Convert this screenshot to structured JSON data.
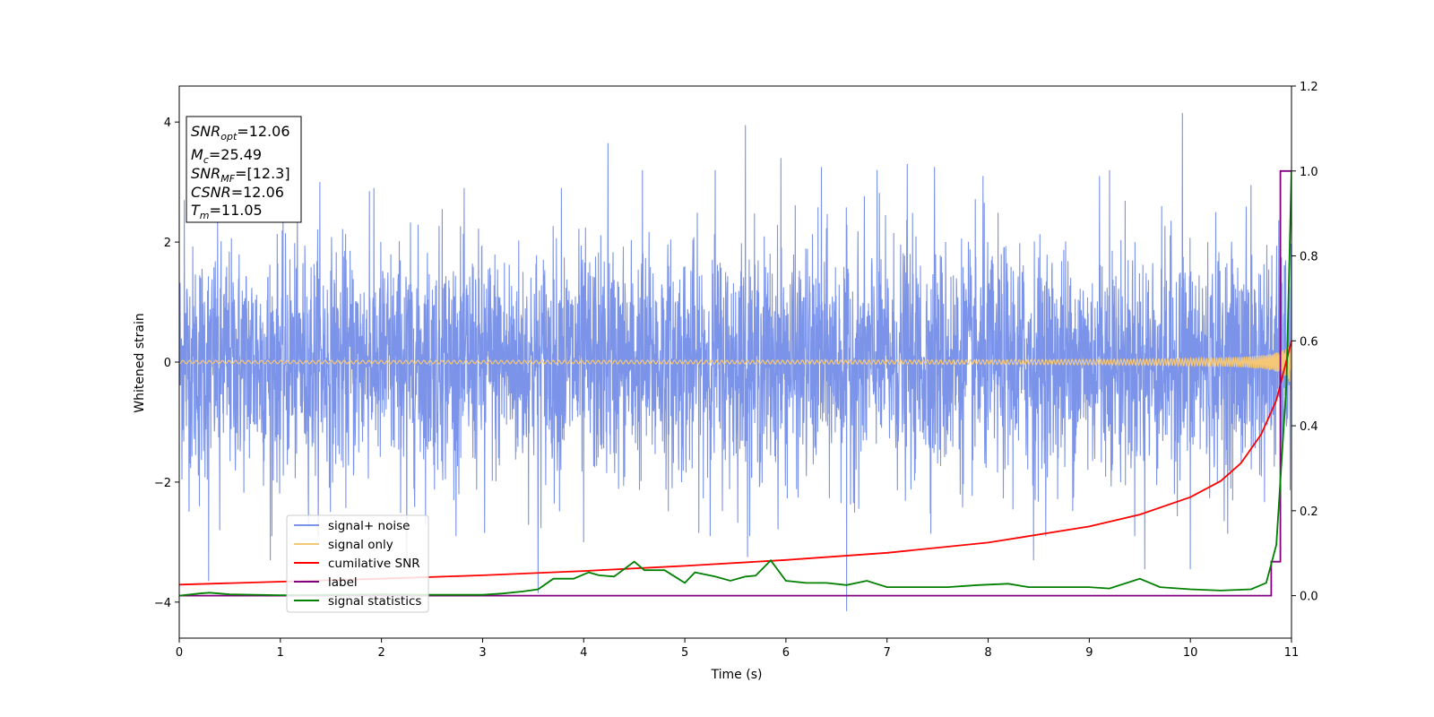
{
  "chart_data": {
    "type": "line",
    "title": "",
    "xlabel": "Time (s)",
    "ylabel": "Whitened strain",
    "xlim": [
      0,
      11
    ],
    "ylim": [
      -4.6,
      4.6
    ],
    "y2lim": [
      -0.1,
      1.2
    ],
    "xticks": [
      "0",
      "1",
      "2",
      "3",
      "4",
      "5",
      "6",
      "7",
      "8",
      "9",
      "10",
      "11"
    ],
    "yticks": [
      "−4",
      "−2",
      "0",
      "2",
      "4"
    ],
    "y2ticks": [
      "0.0",
      "0.2",
      "0.4",
      "0.6",
      "0.8",
      "1.0",
      "1.2"
    ],
    "legend_position": "lower-left",
    "annotation": {
      "snr_opt": {
        "base": "SNR",
        "sub": "opt",
        "value": "=12.06"
      },
      "mc": {
        "base": "M",
        "sub": "c",
        "value": "=25.49"
      },
      "snr_mf": {
        "base": "SNR",
        "sub": "MF",
        "value": "=[12.3]"
      },
      "csnr": {
        "base": "CSNR",
        "value": "=12.06"
      },
      "tm": {
        "base": "T",
        "sub": "m",
        "value": "=11.05"
      }
    },
    "series": [
      {
        "name": "signal+ noise",
        "color": "#7b93e8",
        "axis": "left",
        "kind": "noise",
        "std": 0.95,
        "peaks": [
          [
            0.05,
            2.7
          ],
          [
            0.2,
            -2.4
          ],
          [
            0.29,
            -3.65
          ],
          [
            0.4,
            -2.8
          ],
          [
            0.9,
            -3.3
          ],
          [
            1.39,
            3.0
          ],
          [
            1.88,
            2.85
          ],
          [
            2.25,
            -3.3
          ],
          [
            2.6,
            2.55
          ],
          [
            3.02,
            -2.85
          ],
          [
            3.55,
            -3.85
          ],
          [
            3.78,
            2.9
          ],
          [
            4.0,
            -3.0
          ],
          [
            4.24,
            3.65
          ],
          [
            4.58,
            3.2
          ],
          [
            5.3,
            3.2
          ],
          [
            5.6,
            3.95
          ],
          [
            5.62,
            -3.25
          ],
          [
            5.95,
            3.4
          ],
          [
            6.35,
            3.25
          ],
          [
            6.6,
            -4.15
          ],
          [
            6.9,
            3.2
          ],
          [
            7.2,
            3.3
          ],
          [
            7.47,
            3.25
          ],
          [
            7.95,
            3.1
          ],
          [
            8.45,
            -3.3
          ],
          [
            9.1,
            3.1
          ],
          [
            9.2,
            3.2
          ],
          [
            9.55,
            -3.45
          ],
          [
            9.92,
            4.15
          ],
          [
            10.0,
            -3.45
          ],
          [
            10.6,
            2.95
          ]
        ]
      },
      {
        "name": "signal only",
        "color": "#f5c878",
        "axis": "left",
        "kind": "chirp",
        "amplitude_start": 0.02,
        "amplitude_end": 0.85
      },
      {
        "name": "cumilative SNR",
        "color": "#ff0000",
        "axis": "right",
        "kind": "line",
        "x": [
          0,
          1,
          2,
          3,
          4,
          5,
          6,
          7,
          8,
          9,
          9.5,
          10,
          10.3,
          10.5,
          10.7,
          10.85,
          11
        ],
        "y": [
          0.026,
          0.033,
          0.04,
          0.048,
          0.058,
          0.07,
          0.084,
          0.101,
          0.125,
          0.163,
          0.191,
          0.232,
          0.27,
          0.312,
          0.38,
          0.46,
          0.6
        ]
      },
      {
        "name": "label",
        "color": "#800080",
        "axis": "right",
        "kind": "line",
        "x": [
          0,
          10.8,
          10.8,
          10.89,
          10.89,
          11
        ],
        "y": [
          0,
          0,
          0.08,
          0.08,
          1.0,
          1.0
        ]
      },
      {
        "name": "signal statistics",
        "color": "#008000",
        "axis": "right",
        "kind": "line",
        "x": [
          0,
          0.2,
          0.3,
          0.5,
          1,
          1.5,
          2,
          2.5,
          3,
          3.2,
          3.4,
          3.55,
          3.7,
          3.9,
          4.05,
          4.15,
          4.3,
          4.5,
          4.6,
          4.8,
          5.0,
          5.1,
          5.3,
          5.45,
          5.6,
          5.7,
          5.85,
          6.0,
          6.2,
          6.4,
          6.6,
          6.8,
          7.0,
          7.3,
          7.6,
          7.9,
          8.2,
          8.4,
          8.7,
          9.0,
          9.2,
          9.5,
          9.7,
          10.0,
          10.3,
          10.6,
          10.75,
          10.85,
          10.95,
          11
        ],
        "y": [
          0.0,
          0.005,
          0.007,
          0.003,
          0.001,
          0.002,
          0.003,
          0.002,
          0.002,
          0.005,
          0.01,
          0.015,
          0.04,
          0.04,
          0.055,
          0.048,
          0.045,
          0.08,
          0.06,
          0.06,
          0.03,
          0.055,
          0.045,
          0.035,
          0.045,
          0.047,
          0.083,
          0.035,
          0.03,
          0.03,
          0.025,
          0.035,
          0.02,
          0.02,
          0.02,
          0.025,
          0.028,
          0.02,
          0.02,
          0.02,
          0.017,
          0.04,
          0.02,
          0.015,
          0.012,
          0.015,
          0.03,
          0.12,
          0.5,
          1.0
        ]
      }
    ]
  }
}
